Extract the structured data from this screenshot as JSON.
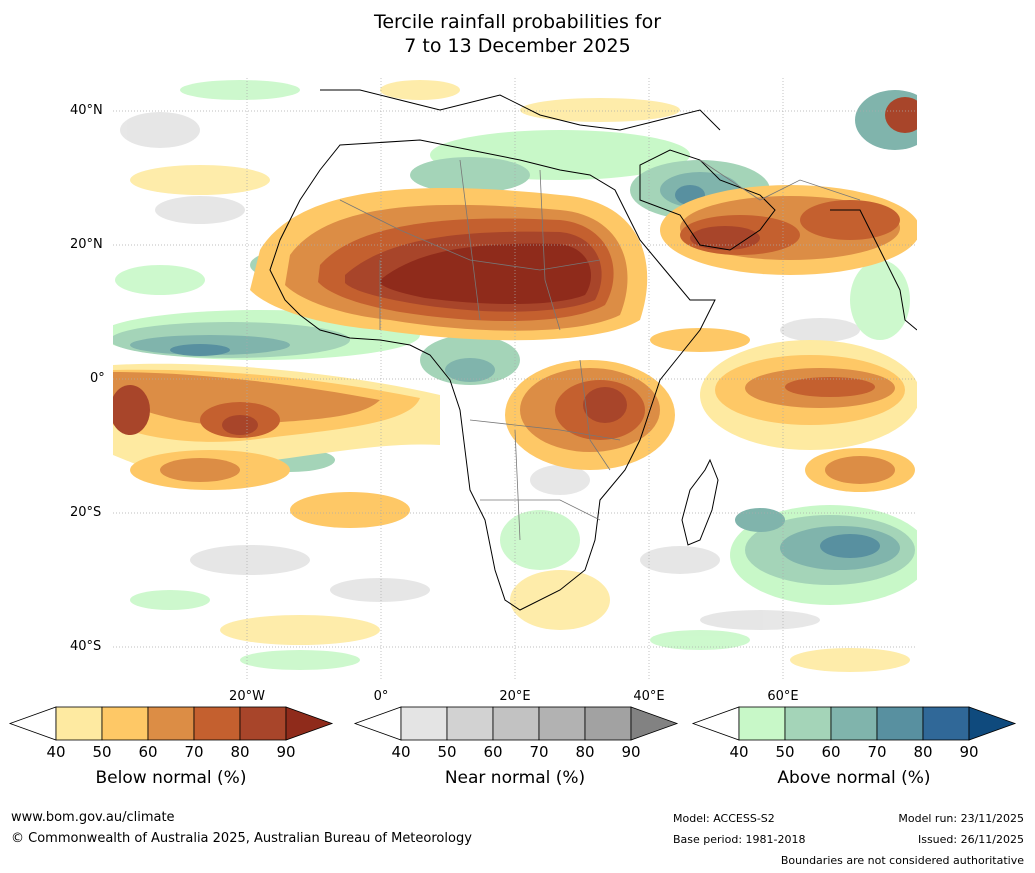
{
  "title": {
    "line1": "Tercile rainfall probabilities for",
    "line2": "7 to 13 December 2025"
  },
  "map": {
    "lat_labels": [
      "40°N",
      "20°N",
      "0°",
      "20°S",
      "40°S"
    ],
    "lon_labels": [
      "20°W",
      "0°",
      "20°E",
      "40°E",
      "60°E"
    ],
    "ocean_color": "#ffffff"
  },
  "legend": {
    "below": {
      "title": "Below normal (%)",
      "ticks": [
        "40",
        "50",
        "60",
        "70",
        "80",
        "90"
      ],
      "colors": [
        "#ffffff",
        "#feeaa1",
        "#fec866",
        "#dc8d45",
        "#c4602f",
        "#a8452a",
        "#8f2b1b"
      ]
    },
    "near": {
      "title": "Near normal (%)",
      "ticks": [
        "40",
        "50",
        "60",
        "70",
        "80",
        "90"
      ],
      "colors": [
        "#ffffff",
        "#e4e4e4",
        "#d2d2d2",
        "#c2c2c2",
        "#b2b2b2",
        "#a2a2a2",
        "#828282"
      ]
    },
    "above": {
      "title": "Above normal (%)",
      "ticks": [
        "40",
        "50",
        "60",
        "70",
        "80",
        "90"
      ],
      "colors": [
        "#ffffff",
        "#c8f8c8",
        "#a4d4b8",
        "#80b4ac",
        "#5890a0",
        "#306898",
        "#0f4a7d"
      ]
    }
  },
  "footer": {
    "url": "www.bom.gov.au/climate",
    "copyright": "© Commonwealth of Australia 2025, Australian Bureau of Meteorology",
    "model": "Model: ACCESS-S2",
    "base_period": "Base period: 1981-2018",
    "model_run": "Model run: 23/11/2025",
    "issued": "Issued: 26/11/2025",
    "disclaimer": "Boundaries are not considered authoritative"
  }
}
